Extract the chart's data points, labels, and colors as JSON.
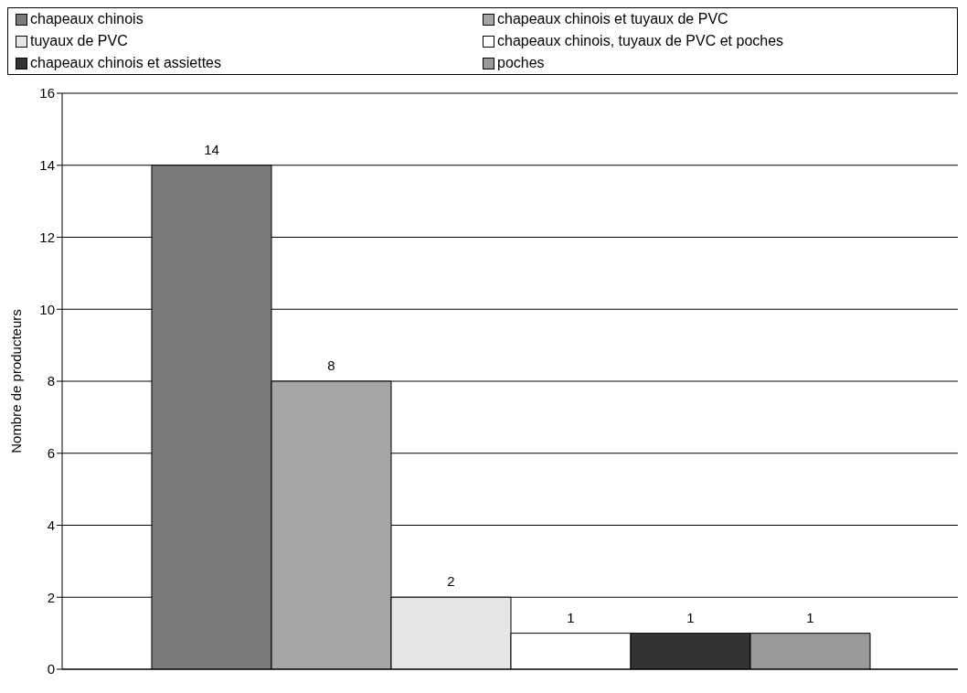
{
  "chart_data": {
    "type": "bar",
    "ylabel": "Nombre de producteurs",
    "categories": [
      null
    ],
    "series": [
      {
        "name": "chapeaux chinois",
        "color": "#7a7a7a",
        "values": [
          14
        ]
      },
      {
        "name": "chapeaux chinois et tuyaux de PVC",
        "color": "#a5a5a5",
        "values": [
          8
        ]
      },
      {
        "name": "tuyaux de PVC",
        "color": "#e6e6e6",
        "values": [
          2
        ]
      },
      {
        "name": "chapeaux chinois, tuyaux de PVC et poches",
        "color": "#ffffff",
        "values": [
          1
        ]
      },
      {
        "name": "chapeaux chinois et assiettes",
        "color": "#333333",
        "values": [
          1
        ]
      },
      {
        "name": "poches",
        "color": "#999999",
        "values": [
          1
        ]
      }
    ],
    "ylim": [
      0,
      16
    ],
    "yticks": [
      0,
      2,
      4,
      6,
      8,
      10,
      12,
      14,
      16
    ],
    "grid": "y",
    "legend": "top",
    "data_labels": true
  }
}
